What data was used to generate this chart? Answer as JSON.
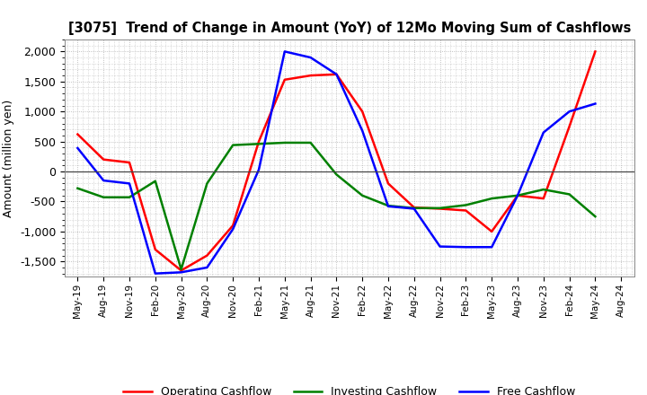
{
  "title": "[3075]  Trend of Change in Amount (YoY) of 12Mo Moving Sum of Cashflows",
  "ylabel": "Amount (million yen)",
  "x_labels": [
    "May-19",
    "Aug-19",
    "Nov-19",
    "Feb-20",
    "May-20",
    "Aug-20",
    "Nov-20",
    "Feb-21",
    "May-21",
    "Aug-21",
    "Nov-21",
    "Feb-22",
    "May-22",
    "Aug-22",
    "Nov-22",
    "Feb-23",
    "May-23",
    "Aug-23",
    "Nov-23",
    "Feb-24",
    "May-24",
    "Aug-24"
  ],
  "operating": [
    620,
    200,
    150,
    -1300,
    -1650,
    -1400,
    -900,
    500,
    1530,
    1600,
    1620,
    1000,
    -200,
    -600,
    -620,
    -650,
    -1000,
    -400,
    -450,
    750,
    2000,
    null
  ],
  "investing": [
    -280,
    -430,
    -430,
    -160,
    -1630,
    -200,
    440,
    460,
    480,
    480,
    -50,
    -400,
    -570,
    -610,
    -610,
    -560,
    -450,
    -400,
    -300,
    -380,
    -750,
    null
  ],
  "free": [
    390,
    -150,
    -200,
    -1700,
    -1680,
    -1600,
    -960,
    30,
    2000,
    1900,
    1620,
    680,
    -580,
    -620,
    -1250,
    -1260,
    -1260,
    -400,
    650,
    1000,
    1130,
    null
  ],
  "ylim": [
    -1750,
    2200
  ],
  "yticks": [
    -1500,
    -1000,
    -500,
    0,
    500,
    1000,
    1500,
    2000
  ],
  "colors": {
    "operating": "#ff0000",
    "investing": "#008000",
    "free": "#0000ff"
  },
  "background_color": "#ffffff",
  "grid_color": "#b0b0b0"
}
